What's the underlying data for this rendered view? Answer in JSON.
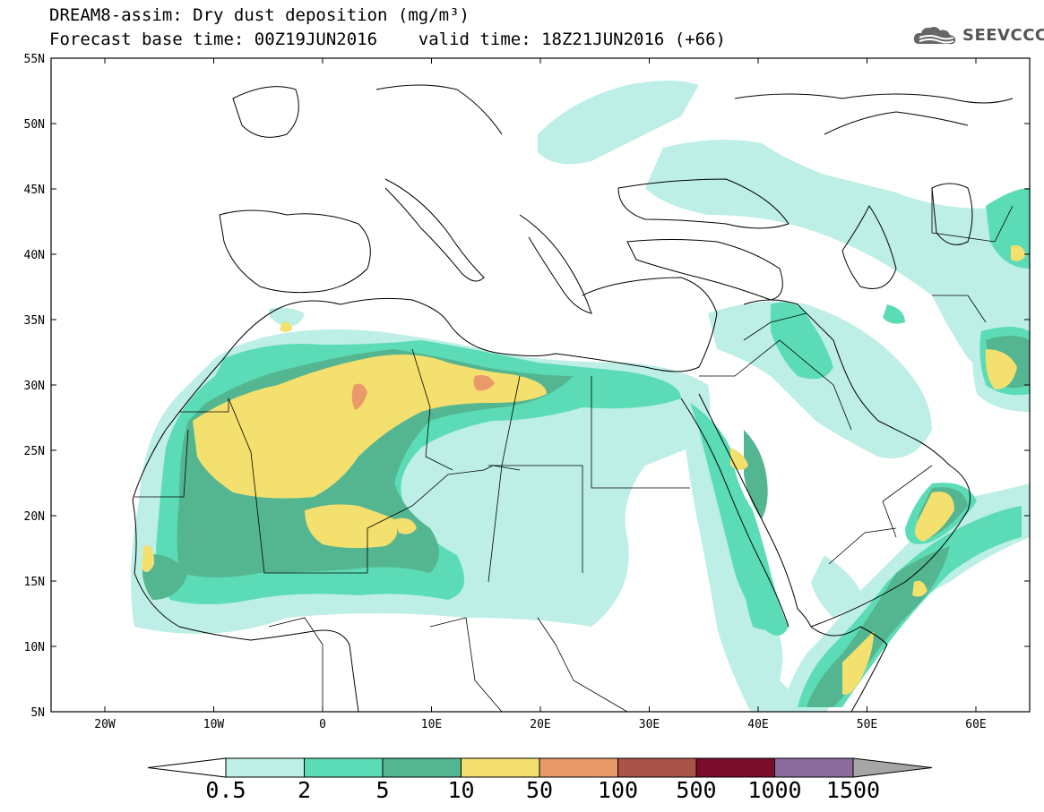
{
  "header": {
    "title_line1": "DREAM8-assim: Dry dust deposition (mg/m³)",
    "title_line2": "Forecast base time: 00Z19JUN2016    valid time: 18Z21JUN2016 (+66)"
  },
  "logo": {
    "text": "SEEVCCC",
    "icon": "cloud-icon"
  },
  "map": {
    "lon_labels": [
      "20W",
      "10W",
      "0",
      "10E",
      "20E",
      "30E",
      "40E",
      "50E",
      "60E"
    ],
    "lat_labels": [
      "55N",
      "50N",
      "45N",
      "40N",
      "35N",
      "30N",
      "25N",
      "20N",
      "15N",
      "10N",
      "5N"
    ]
  },
  "colorbar": {
    "labels": [
      "0.5",
      "2",
      "5",
      "10",
      "50",
      "100",
      "500",
      "1000",
      "1500"
    ],
    "colors": [
      "#ffffff",
      "#bdefe6",
      "#5cdcb6",
      "#54b591",
      "#f4e06e",
      "#ea9a6a",
      "#a95247",
      "#7a0d2c",
      "#8c6b9e",
      "#a6a6a6"
    ]
  },
  "palette": {
    "level1": "#bdefe6",
    "level2": "#5cdcb6",
    "level3": "#54b591",
    "level4": "#f4e06e",
    "level5": "#ea9a6a"
  }
}
